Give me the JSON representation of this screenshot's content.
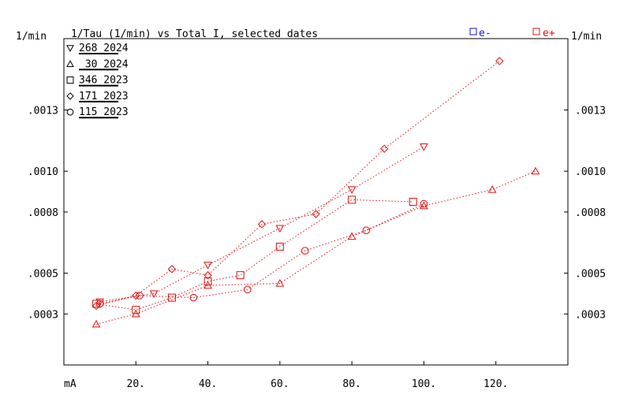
{
  "chart_data": {
    "type": "scatter",
    "title": "1/Tau (1/min) vs Total I, selected dates",
    "ylabel_left": "1/min",
    "ylabel_right": "1/min",
    "xlabel": "mA",
    "xlim": [
      0,
      140
    ],
    "ylim": [
      5e-05,
      0.00165
    ],
    "x_ticks": [
      20,
      40,
      60,
      80,
      100,
      120
    ],
    "x_tick_labels": [
      "20.",
      "40.",
      "60.",
      "80.",
      "100.",
      "120."
    ],
    "y_ticks": [
      0.0003,
      0.0005,
      0.0008,
      0.001,
      0.0013
    ],
    "y_tick_labels": [
      ".0003",
      ".0005",
      ".0008",
      ".0010",
      ".0013"
    ],
    "grid": false,
    "line_style": "dotted",
    "color": "#e01010",
    "top_legend": [
      {
        "label": "e-",
        "color": "#1010e0"
      },
      {
        "label": "e+",
        "color": "#e01010"
      }
    ],
    "series": [
      {
        "name": "268 2024",
        "marker": "triangle-down",
        "x": [
          10,
          25,
          40,
          60,
          80,
          100
        ],
        "y": [
          0.00036,
          0.0004,
          0.00054,
          0.00072,
          0.00091,
          0.00112
        ]
      },
      {
        "name": " 30 2024",
        "marker": "triangle-up",
        "x": [
          9,
          20,
          40,
          60,
          80,
          100,
          119,
          131
        ],
        "y": [
          0.00025,
          0.0003,
          0.00044,
          0.00045,
          0.00068,
          0.00083,
          0.00091,
          0.001
        ]
      },
      {
        "name": "346 2023",
        "marker": "square",
        "x": [
          9,
          20,
          30,
          40,
          49,
          60,
          80,
          97
        ],
        "y": [
          0.00035,
          0.00032,
          0.00038,
          0.00046,
          0.00049,
          0.00063,
          0.00086,
          0.00085
        ]
      },
      {
        "name": "171 2023",
        "marker": "diamond",
        "x": [
          9,
          20,
          30,
          40,
          55,
          70,
          89,
          121
        ],
        "y": [
          0.00034,
          0.00039,
          0.00052,
          0.00049,
          0.00074,
          0.00079,
          0.00111,
          0.00154
        ]
      },
      {
        "name": "115 2023",
        "marker": "octagon",
        "x": [
          10,
          21,
          36,
          51,
          67,
          84,
          100
        ],
        "y": [
          0.00035,
          0.00039,
          0.00038,
          0.00042,
          0.00061,
          0.00071,
          0.00084
        ]
      }
    ]
  }
}
